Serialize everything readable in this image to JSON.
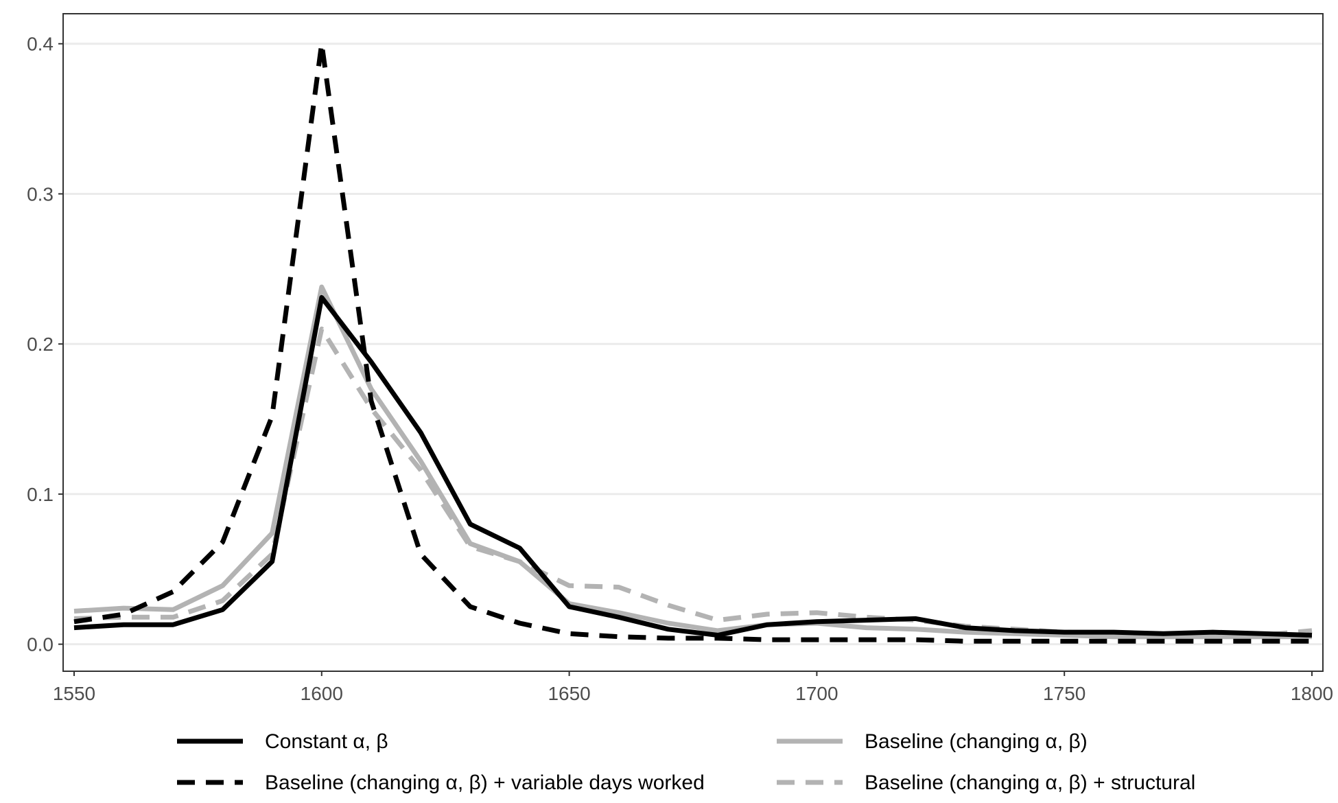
{
  "chart_data": {
    "type": "line",
    "title": "",
    "xlabel": "",
    "ylabel": "",
    "xlim": [
      1550,
      1800
    ],
    "ylim": [
      -0.018,
      0.42
    ],
    "xticks": [
      1550,
      1600,
      1650,
      1700,
      1750,
      1800
    ],
    "xtick_labels": [
      "1550",
      "1600",
      "1650",
      "1700",
      "1750",
      "1800"
    ],
    "yticks": [
      0.0,
      0.1,
      0.2,
      0.3,
      0.4
    ],
    "ytick_labels": [
      "0.0",
      "0.1",
      "0.2",
      "0.3",
      "0.4"
    ],
    "grid": "horizontal",
    "legend_position": "bottom",
    "x": [
      1550,
      1560,
      1570,
      1580,
      1590,
      1600,
      1610,
      1620,
      1630,
      1640,
      1650,
      1660,
      1670,
      1680,
      1690,
      1700,
      1710,
      1720,
      1730,
      1740,
      1750,
      1760,
      1770,
      1780,
      1790,
      1800
    ],
    "series": [
      {
        "name": "Constant α, β",
        "color": "#000000",
        "dash": "solid",
        "values": [
          0.011,
          0.013,
          0.013,
          0.023,
          0.055,
          0.231,
          0.188,
          0.141,
          0.08,
          0.064,
          0.025,
          0.018,
          0.01,
          0.006,
          0.013,
          0.015,
          0.016,
          0.017,
          0.011,
          0.009,
          0.008,
          0.008,
          0.007,
          0.008,
          0.007,
          0.006
        ]
      },
      {
        "name": "Baseline (changing α, β)",
        "color": "#b3b3b3",
        "dash": "solid",
        "values": [
          0.022,
          0.024,
          0.023,
          0.039,
          0.074,
          0.238,
          0.17,
          0.122,
          0.067,
          0.055,
          0.027,
          0.021,
          0.014,
          0.009,
          0.013,
          0.014,
          0.011,
          0.01,
          0.008,
          0.007,
          0.006,
          0.005,
          0.005,
          0.005,
          0.005,
          0.005
        ]
      },
      {
        "name": "Baseline (changing α, β) + variable days worked",
        "color": "#000000",
        "dash": "dashed",
        "values": [
          0.015,
          0.02,
          0.035,
          0.068,
          0.152,
          0.4,
          0.162,
          0.06,
          0.025,
          0.014,
          0.007,
          0.005,
          0.004,
          0.004,
          0.003,
          0.003,
          0.003,
          0.003,
          0.002,
          0.002,
          0.002,
          0.002,
          0.002,
          0.002,
          0.002,
          0.002
        ]
      },
      {
        "name": "Baseline (changing α, β) + structural",
        "color": "#b3b3b3",
        "dash": "dashed",
        "values": [
          0.017,
          0.018,
          0.018,
          0.029,
          0.06,
          0.21,
          0.157,
          0.116,
          0.065,
          0.055,
          0.039,
          0.038,
          0.026,
          0.016,
          0.02,
          0.021,
          0.018,
          0.016,
          0.012,
          0.01,
          0.008,
          0.007,
          0.006,
          0.006,
          0.006,
          0.009
        ]
      }
    ]
  }
}
